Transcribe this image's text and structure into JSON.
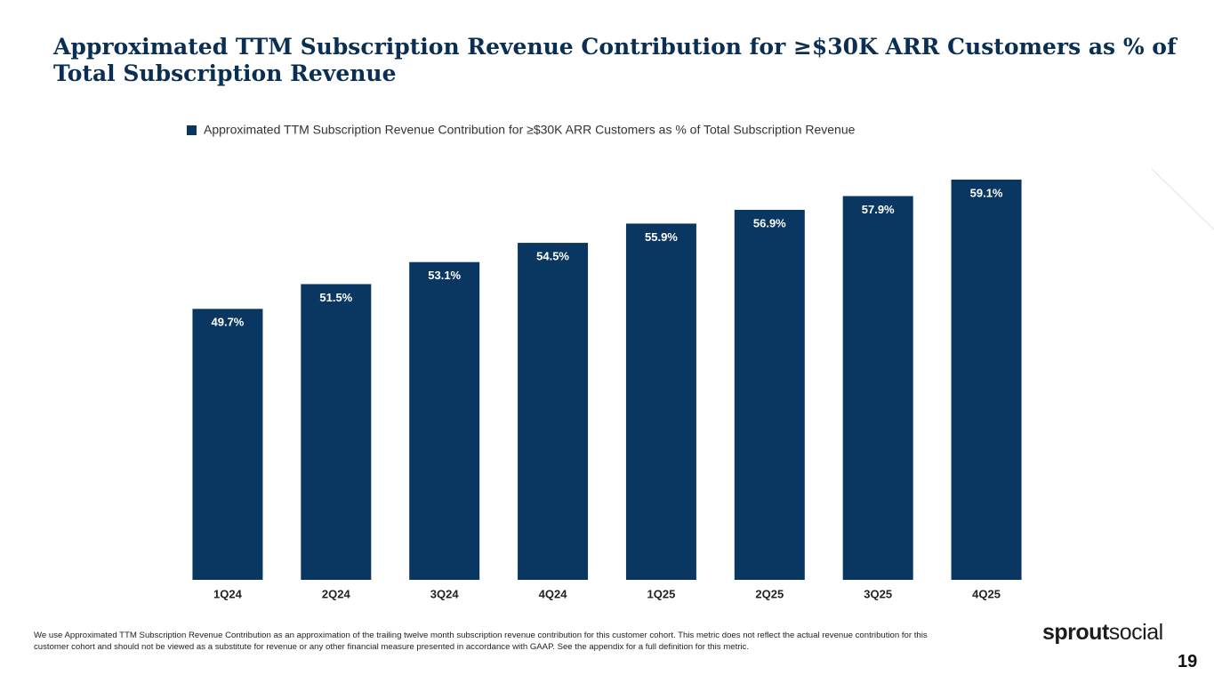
{
  "chart_data": {
    "type": "bar",
    "title": "Approximated TTM Subscription Revenue Contribution for ≥$30K ARR Customers as % of Total Subscription Revenue",
    "categories": [
      "1Q24",
      "2Q24",
      "3Q24",
      "4Q24",
      "1Q25",
      "2Q25",
      "3Q25",
      "4Q25"
    ],
    "series": [
      {
        "name": "Approximated TTM Subscription Revenue Contribution for ≥$30K ARR Customers as % of Total Subscription Revenue",
        "color": "#0a3761",
        "values": [
          49.7,
          51.5,
          53.1,
          54.5,
          55.9,
          56.9,
          57.9,
          59.1
        ],
        "value_labels": [
          "49.7%",
          "51.5%",
          "53.1%",
          "54.5%",
          "55.9%",
          "56.9%",
          "57.9%",
          "59.1%"
        ]
      }
    ],
    "ylim": [
      30,
      60
    ],
    "legend": "top"
  },
  "footnote": "We use Approximated TTM Subscription Revenue Contribution as an approximation of the trailing twelve month subscription revenue contribution for this customer cohort. This metric does not reflect the actual revenue contribution for this customer cohort and should not be viewed as a substitute for revenue or any other financial measure presented in accordance with GAAP.  See the appendix for a full definition for this metric.",
  "logo": {
    "bold": "sprout",
    "light": "social"
  },
  "page_number": "19"
}
